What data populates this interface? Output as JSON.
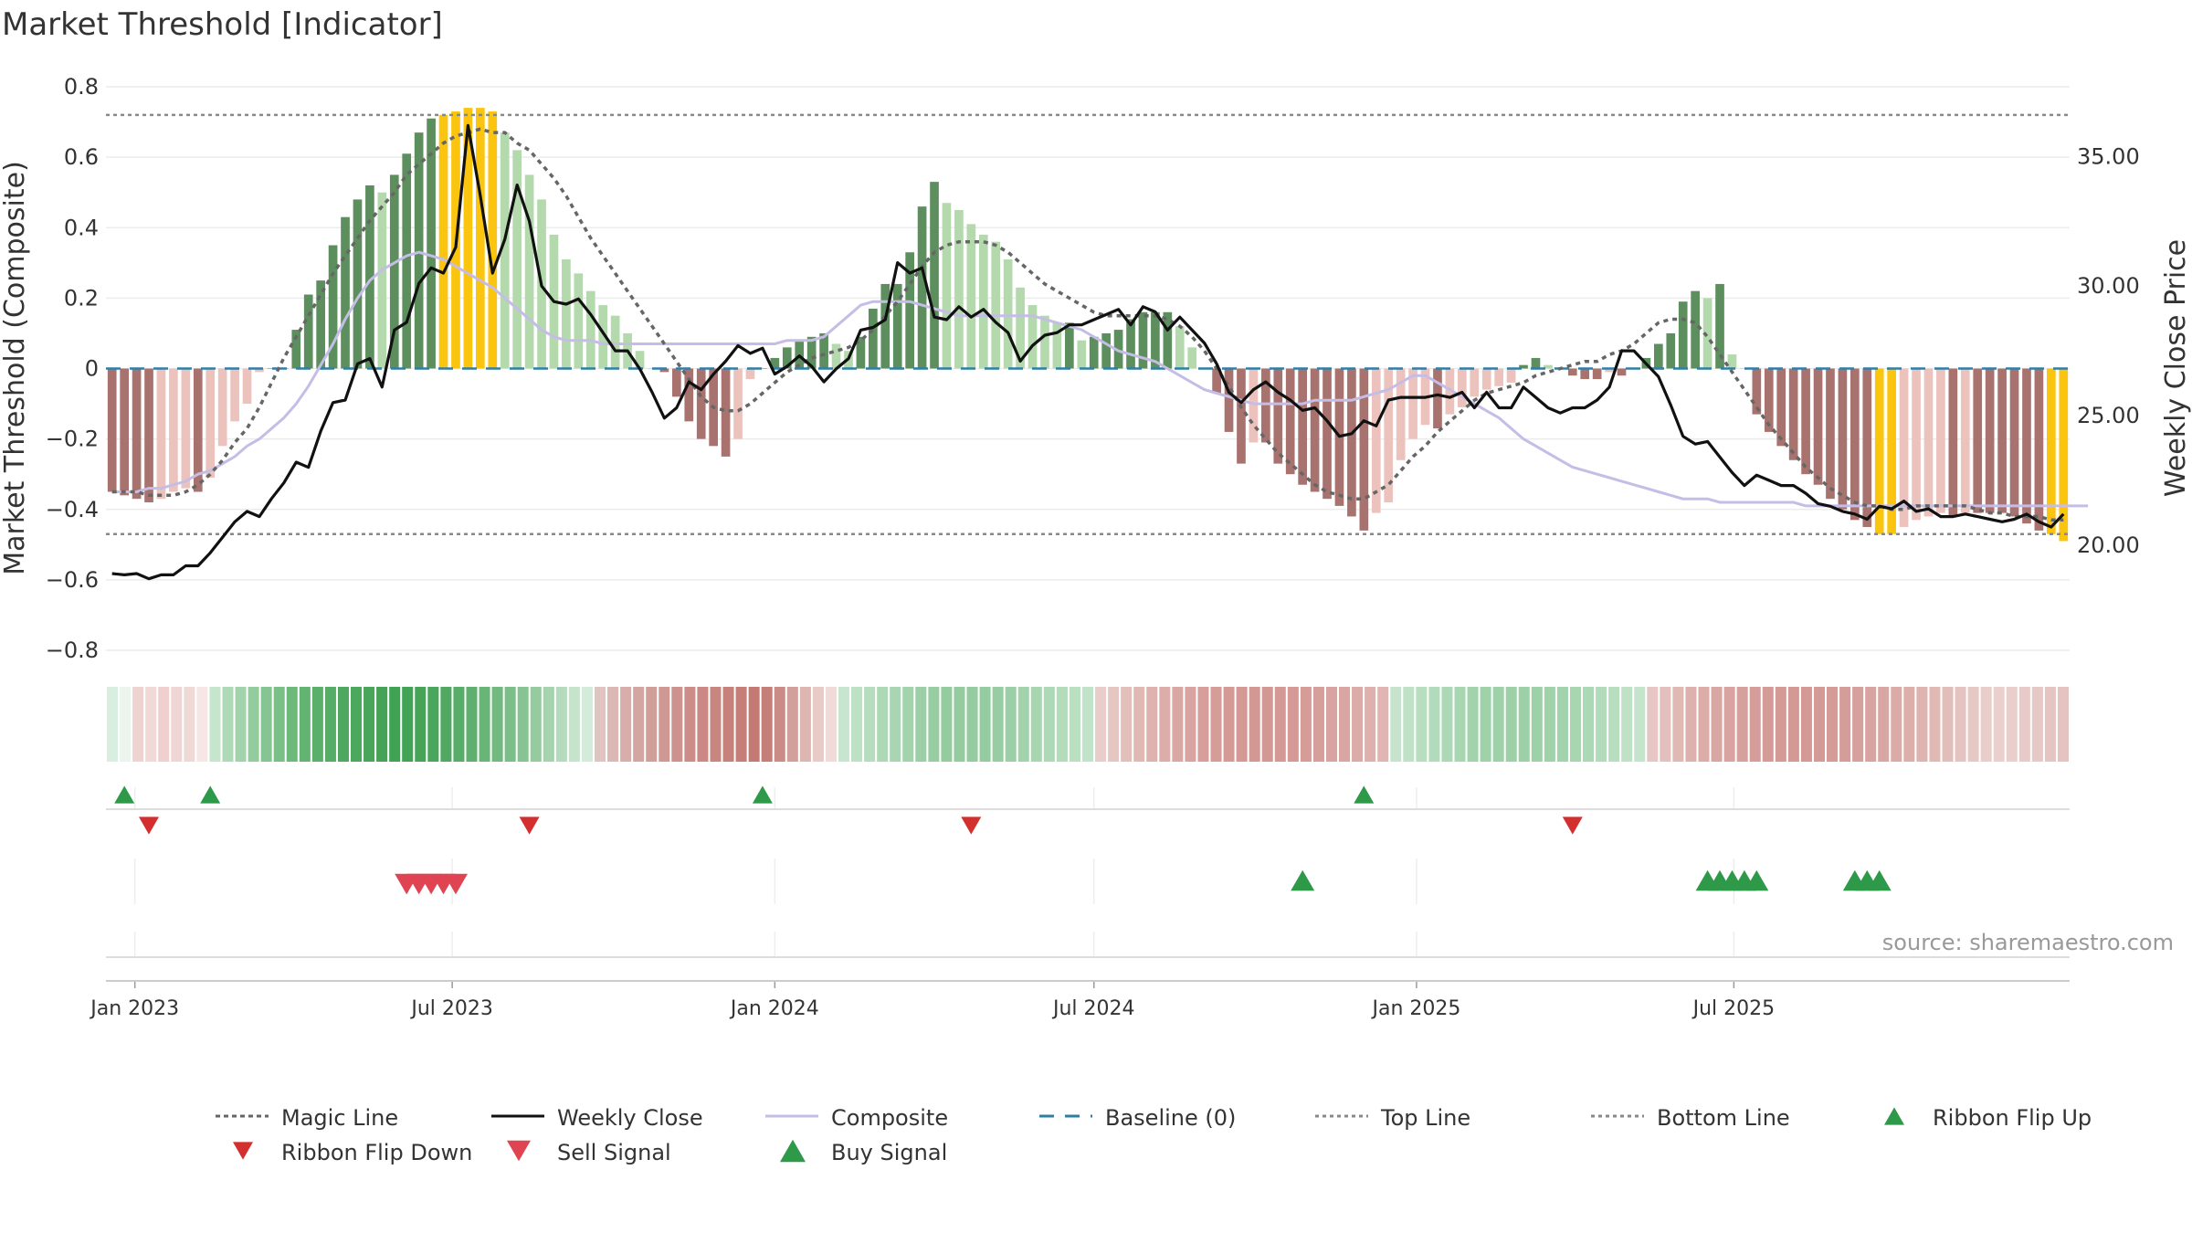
{
  "chart_data": {
    "type": "bar",
    "title": "Market Threshold [Indicator]",
    "ylabel_left": "Market Threshold (Composite)",
    "ylabel_right": "Weekly Close Price",
    "source": "source: sharemaestro.com",
    "y_left": {
      "range": [
        -0.8,
        0.8
      ],
      "ticks": [
        0.8,
        0.6,
        0.4,
        0.2,
        0,
        -0.2,
        -0.4,
        -0.6,
        -0.8
      ],
      "tick_labels": [
        "0.8",
        "0.6",
        "0.4",
        "0.2",
        "0",
        "−0.2",
        "−0.4",
        "−0.6",
        "−0.8"
      ]
    },
    "y_right": {
      "range": [
        15.94,
        37.69
      ],
      "ticks": [
        35,
        30,
        25,
        20
      ],
      "tick_labels": [
        "35.00",
        "30.00",
        "25.00",
        "20.00"
      ]
    },
    "x_ticks": [
      "Jan 2023",
      "Jul 2023",
      "Jan 2024",
      "Jul 2024",
      "Jan 2025",
      "Jul 2025"
    ],
    "x_start": "2022-12-19",
    "x_tick_dates": [
      "2023-01-01",
      "2023-07-01",
      "2024-01-01",
      "2024-07-01",
      "2025-01-01",
      "2025-07-01"
    ],
    "top_line": 0.72,
    "bottom_line": -0.47,
    "baseline": 0,
    "composite_bars": [
      -0.35,
      -0.36,
      -0.37,
      -0.38,
      -0.37,
      -0.35,
      -0.34,
      -0.35,
      -0.31,
      -0.22,
      -0.15,
      -0.1,
      -0.01,
      0.0,
      0.0,
      0.11,
      0.21,
      0.25,
      0.35,
      0.43,
      0.48,
      0.52,
      0.5,
      0.55,
      0.61,
      0.67,
      0.71,
      0.72,
      0.73,
      0.74,
      0.74,
      0.73,
      0.67,
      0.62,
      0.55,
      0.48,
      0.38,
      0.31,
      0.27,
      0.22,
      0.18,
      0.15,
      0.1,
      0.05,
      0.0,
      -0.01,
      -0.08,
      -0.15,
      -0.2,
      -0.22,
      -0.25,
      -0.2,
      -0.03,
      0.0,
      0.03,
      0.06,
      0.08,
      0.09,
      0.1,
      0.07,
      0.05,
      0.09,
      0.17,
      0.24,
      0.24,
      0.33,
      0.46,
      0.53,
      0.47,
      0.45,
      0.41,
      0.38,
      0.36,
      0.31,
      0.23,
      0.18,
      0.15,
      0.13,
      0.13,
      0.08,
      0.09,
      0.1,
      0.11,
      0.14,
      0.16,
      0.16,
      0.16,
      0.12,
      0.06,
      0.0,
      -0.07,
      -0.18,
      -0.27,
      -0.21,
      -0.21,
      -0.27,
      -0.3,
      -0.33,
      -0.35,
      -0.37,
      -0.39,
      -0.42,
      -0.46,
      -0.41,
      -0.38,
      -0.26,
      -0.2,
      -0.16,
      -0.17,
      -0.13,
      -0.11,
      -0.08,
      -0.06,
      -0.05,
      -0.04,
      0.01,
      0.03,
      0.01,
      0.0,
      -0.02,
      -0.03,
      -0.03,
      -0.01,
      -0.02,
      0.0,
      0.03,
      0.07,
      0.1,
      0.19,
      0.22,
      0.2,
      0.24,
      0.04,
      0.0,
      -0.13,
      -0.18,
      -0.22,
      -0.26,
      -0.3,
      -0.33,
      -0.37,
      -0.4,
      -0.43,
      -0.45,
      -0.47,
      -0.47,
      -0.45,
      -0.43,
      -0.42,
      -0.41,
      -0.42,
      -0.41,
      -0.41,
      -0.41,
      -0.41,
      -0.42,
      -0.44,
      -0.46,
      -0.47,
      -0.49
    ],
    "magic_line": [
      -0.35,
      -0.35,
      -0.35,
      -0.36,
      -0.36,
      -0.36,
      -0.35,
      -0.33,
      -0.3,
      -0.26,
      -0.21,
      -0.17,
      -0.11,
      -0.04,
      0.03,
      0.09,
      0.15,
      0.21,
      0.27,
      0.32,
      0.37,
      0.42,
      0.46,
      0.5,
      0.55,
      0.58,
      0.61,
      0.64,
      0.66,
      0.67,
      0.68,
      0.67,
      0.67,
      0.64,
      0.62,
      0.58,
      0.54,
      0.49,
      0.43,
      0.37,
      0.32,
      0.27,
      0.22,
      0.17,
      0.12,
      0.07,
      0.02,
      -0.03,
      -0.08,
      -0.11,
      -0.12,
      -0.12,
      -0.1,
      -0.07,
      -0.04,
      -0.01,
      0.01,
      0.03,
      0.04,
      0.05,
      0.06,
      0.08,
      0.11,
      0.15,
      0.19,
      0.24,
      0.29,
      0.33,
      0.35,
      0.36,
      0.36,
      0.36,
      0.35,
      0.33,
      0.3,
      0.27,
      0.24,
      0.22,
      0.2,
      0.18,
      0.16,
      0.15,
      0.15,
      0.15,
      0.15,
      0.15,
      0.14,
      0.12,
      0.09,
      0.05,
      0.0,
      -0.05,
      -0.11,
      -0.16,
      -0.2,
      -0.24,
      -0.27,
      -0.3,
      -0.33,
      -0.35,
      -0.36,
      -0.37,
      -0.37,
      -0.35,
      -0.33,
      -0.29,
      -0.25,
      -0.22,
      -0.18,
      -0.15,
      -0.12,
      -0.09,
      -0.07,
      -0.06,
      -0.05,
      -0.04,
      -0.02,
      -0.01,
      0.0,
      0.01,
      0.02,
      0.02,
      0.04,
      0.05,
      0.07,
      0.1,
      0.13,
      0.14,
      0.14,
      0.13,
      0.09,
      0.04,
      -0.01,
      -0.06,
      -0.11,
      -0.16,
      -0.2,
      -0.24,
      -0.28,
      -0.31,
      -0.34,
      -0.36,
      -0.38,
      -0.39,
      -0.39,
      -0.4,
      -0.4,
      -0.39,
      -0.39,
      -0.39,
      -0.39,
      -0.39,
      -0.4,
      -0.41,
      -0.41,
      -0.42,
      -0.42,
      -0.42,
      -0.43,
      -0.43
    ],
    "composite_line": [
      -0.35,
      -0.35,
      -0.35,
      -0.34,
      -0.34,
      -0.33,
      -0.32,
      -0.3,
      -0.29,
      -0.27,
      -0.25,
      -0.22,
      -0.2,
      -0.17,
      -0.14,
      -0.1,
      -0.05,
      0.01,
      0.07,
      0.14,
      0.2,
      0.25,
      0.28,
      0.3,
      0.32,
      0.33,
      0.32,
      0.31,
      0.29,
      0.27,
      0.25,
      0.23,
      0.2,
      0.17,
      0.14,
      0.11,
      0.09,
      0.08,
      0.08,
      0.08,
      0.07,
      0.07,
      0.07,
      0.07,
      0.07,
      0.07,
      0.07,
      0.07,
      0.07,
      0.07,
      0.07,
      0.07,
      0.07,
      0.07,
      0.07,
      0.08,
      0.08,
      0.08,
      0.09,
      0.12,
      0.15,
      0.18,
      0.19,
      0.19,
      0.19,
      0.19,
      0.18,
      0.17,
      0.16,
      0.15,
      0.15,
      0.15,
      0.15,
      0.15,
      0.15,
      0.15,
      0.14,
      0.13,
      0.12,
      0.11,
      0.09,
      0.07,
      0.05,
      0.04,
      0.03,
      0.02,
      0.0,
      -0.02,
      -0.04,
      -0.06,
      -0.07,
      -0.08,
      -0.09,
      -0.1,
      -0.1,
      -0.1,
      -0.1,
      -0.1,
      -0.09,
      -0.09,
      -0.09,
      -0.09,
      -0.08,
      -0.07,
      -0.06,
      -0.04,
      -0.02,
      -0.02,
      -0.04,
      -0.06,
      -0.08,
      -0.1,
      -0.12,
      -0.14,
      -0.17,
      -0.2,
      -0.22,
      -0.24,
      -0.26,
      -0.28,
      -0.29,
      -0.3,
      -0.31,
      -0.32,
      -0.33,
      -0.34,
      -0.35,
      -0.36,
      -0.37,
      -0.37,
      -0.37,
      -0.38,
      -0.38,
      -0.38,
      -0.38,
      -0.38,
      -0.38,
      -0.38,
      -0.39,
      -0.39,
      -0.39,
      -0.39,
      -0.39,
      -0.39,
      -0.39,
      -0.39,
      -0.39,
      -0.39,
      -0.39,
      -0.39,
      -0.39,
      -0.39,
      -0.39,
      -0.39,
      -0.39,
      -0.39,
      -0.39,
      -0.39,
      -0.39,
      -0.39,
      -0.39,
      -0.39
    ],
    "weekly_close": [
      18.9,
      18.85,
      18.9,
      18.7,
      18.85,
      18.85,
      19.2,
      19.2,
      19.7,
      20.3,
      20.9,
      21.3,
      21.1,
      21.8,
      22.4,
      23.2,
      23.0,
      24.4,
      25.5,
      25.6,
      27.0,
      27.2,
      26.1,
      28.3,
      28.6,
      30.1,
      30.7,
      30.5,
      31.5,
      36.2,
      33.5,
      30.5,
      31.8,
      33.9,
      32.5,
      30.0,
      29.4,
      29.3,
      29.5,
      28.9,
      28.2,
      27.5,
      27.5,
      26.8,
      25.9,
      24.9,
      25.3,
      26.3,
      26.0,
      26.6,
      27.1,
      27.7,
      27.4,
      27.6,
      26.6,
      26.9,
      27.3,
      26.9,
      26.3,
      26.8,
      27.2,
      28.3,
      28.4,
      28.7,
      30.9,
      30.5,
      30.7,
      28.8,
      28.7,
      29.2,
      28.8,
      29.1,
      28.6,
      28.2,
      27.1,
      27.7,
      28.1,
      28.2,
      28.5,
      28.5,
      28.7,
      28.9,
      29.1,
      28.5,
      29.2,
      29.0,
      28.3,
      28.8,
      28.3,
      27.8,
      27.0,
      25.9,
      25.5,
      26.0,
      26.3,
      25.9,
      25.6,
      25.2,
      25.3,
      24.8,
      24.2,
      24.3,
      24.8,
      24.6,
      25.6,
      25.7,
      25.7,
      25.7,
      25.8,
      25.7,
      25.9,
      25.3,
      25.9,
      25.3,
      25.3,
      26.1,
      25.7,
      25.3,
      25.1,
      25.3,
      25.3,
      25.6,
      26.1,
      27.5,
      27.5,
      27.0,
      26.5,
      25.4,
      24.2,
      23.9,
      24.0,
      23.4,
      22.8,
      22.3,
      22.7,
      22.5,
      22.3,
      22.3,
      22.0,
      21.6,
      21.5,
      21.3,
      21.2,
      21.0,
      21.5,
      21.4,
      21.7,
      21.3,
      21.4,
      21.1,
      21.1,
      21.2,
      21.1,
      21.0,
      20.9,
      21.0,
      21.2,
      20.9,
      20.7,
      21.2
    ]
  },
  "ribbon": {
    "colors": [
      "#d8efdf",
      "#ebf5ee",
      "#efd3d1",
      "#f1d9d7",
      "#efd0ce",
      "#efd6d4",
      "#efd9d7",
      "#f6e6e5",
      "#c5e6cd",
      "#aed9b7",
      "#a2d3ac",
      "#94cca0",
      "#85c591",
      "#79bf86",
      "#6db97b",
      "#63b472",
      "#5ab06a",
      "#55ad65",
      "#4fa860",
      "#4ca85d",
      "#48a55a",
      "#44a357",
      "#40a253",
      "#42a255",
      "#46a459",
      "#4ba65d",
      "#50a862",
      "#57ac68",
      "#5fb06f",
      "#69b578",
      "#71b97f",
      "#7bbe88",
      "#88c493",
      "#95cb9f",
      "#a4d3ad",
      "#b5dbbc",
      "#c6e4cb",
      "#d5ebd9",
      "#e0c4c1",
      "#dbb8b4",
      "#d7aeaa",
      "#d4a6a2",
      "#d19f9a",
      "#cf9893",
      "#cd928d",
      "#cc8d88",
      "#ca8984",
      "#c88680",
      "#c6817b",
      "#c67e78",
      "#c47a74",
      "#c67e78",
      "#cb8c87",
      "#d39f9a",
      "#ddb5b1",
      "#e8cac7",
      "#f0dbd9",
      "#c8e6cf",
      "#bde1c5",
      "#b5ddbe",
      "#aed9b7",
      "#a8d6b2",
      "#a2d3ac",
      "#9ccfa7",
      "#98cda3",
      "#95cc9f",
      "#94cb9f",
      "#94cb9f",
      "#95cc9f",
      "#98cda3",
      "#9ccfa7",
      "#a2d3ac",
      "#a7d6b1",
      "#add9b6",
      "#b3dcbb",
      "#bae0c2",
      "#c1e3c7",
      "#e8cdcb",
      "#e6c6c3",
      "#e3bfbc",
      "#e0b8b4",
      "#deb2ae",
      "#dcada9",
      "#daa8a4",
      "#d8a3a0",
      "#d79f9b",
      "#d59c98",
      "#d59a96",
      "#d49995",
      "#d49894",
      "#d49894",
      "#d49995",
      "#d59a96",
      "#d59c98",
      "#d79f9b",
      "#d8a3a0",
      "#d9a7a3",
      "#daaba7",
      "#ddb1ad",
      "#dfb6b3",
      "#c6e4cc",
      "#bfe1c6",
      "#b8dec0",
      "#b1dbba",
      "#acd8b5",
      "#a7d6b1",
      "#a3d3ad",
      "#a0d2aa",
      "#9ed1a8",
      "#9dd0a7",
      "#9dd0a7",
      "#9ed1a8",
      "#a0d2aa",
      "#a3d3ad",
      "#a7d6b1",
      "#acd8b5",
      "#b1dbba",
      "#b8dec0",
      "#bfe1c6",
      "#c6e4cc",
      "#e6c7c4",
      "#e3c0bd",
      "#e0b9b5",
      "#ddb2ae",
      "#dbaca8",
      "#d9a7a3",
      "#d8a3a0",
      "#d6a09c",
      "#d59d99",
      "#d59b97",
      "#d49a96",
      "#d49995",
      "#d49995",
      "#d49a96",
      "#d59b97",
      "#d59d99",
      "#d6a09c",
      "#d8a3a0",
      "#d9a7a3",
      "#daaba7",
      "#dcafab",
      "#deb4b0",
      "#e0b9b5",
      "#e2bebb",
      "#e4c3c0",
      "#e6c8c5",
      "#e8cdca",
      "#eacfcc",
      "#e9cecb",
      "#e8cbc8",
      "#e6c8c5",
      "#e5c5c2",
      "#e4c3c0"
    ]
  },
  "signals": {
    "ribbon_flip_up": [
      1,
      8,
      53,
      102
    ],
    "ribbon_flip_down": [
      3,
      34,
      70,
      119
    ],
    "sell_signal": [
      24,
      25,
      26,
      27,
      28
    ],
    "buy_signal": [
      97,
      130,
      131,
      132,
      133,
      134,
      142,
      143,
      144
    ]
  },
  "legend": [
    {
      "label": "Magic Line",
      "icon": "dotted-line"
    },
    {
      "label": "Weekly Close",
      "icon": "solid-line"
    },
    {
      "label": "Composite",
      "icon": "lavender-line"
    },
    {
      "label": "Baseline (0)",
      "icon": "dashed-line"
    },
    {
      "label": "Top Line",
      "icon": "dotted-line"
    },
    {
      "label": "Bottom Line",
      "icon": "dotted-line"
    },
    {
      "label": "Ribbon Flip Up",
      "icon": "triangle-up"
    },
    {
      "label": "Ribbon Flip Down",
      "icon": "triangle-down"
    },
    {
      "label": "Sell Signal",
      "icon": "triangle-down"
    },
    {
      "label": "Buy Signal",
      "icon": "triangle-up"
    }
  ],
  "colors": {
    "dark_green": "#5d8f5e",
    "light_green": "#b3d9ad",
    "dark_red": "#a8726f",
    "light_red": "#ecc2bd",
    "yellow": "#fbc40f",
    "magic_line": "#666666",
    "weekly_close": "#111111",
    "composite": "#c5bde6",
    "baseline": "#2e7fa6",
    "ribbon_flip_up": "#2e9a49",
    "ribbon_flip_down": "#d32f2f",
    "sell_signal": "#e04352",
    "buy_signal": "#2e9a49"
  }
}
